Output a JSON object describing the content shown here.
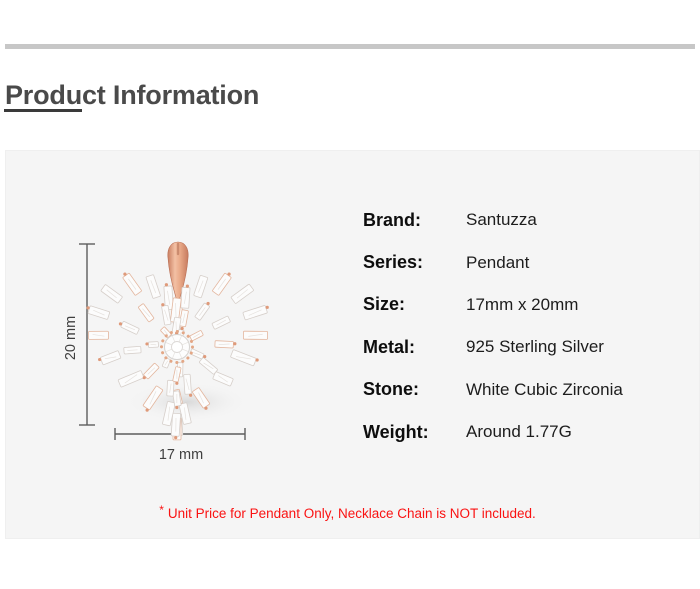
{
  "page": {
    "title": "Product Information"
  },
  "panel": {
    "diagram": {
      "height_label": "20 mm",
      "width_label": "17 mm"
    },
    "specs": [
      {
        "label": "Brand:",
        "value": "Santuzza"
      },
      {
        "label": "Series:",
        "value": "Pendant"
      },
      {
        "label": "Size:",
        "value": "17mm x 20mm"
      },
      {
        "label": "Metal:",
        "value": "925 Sterling Silver"
      },
      {
        "label": "Stone:",
        "value": "White Cubic Zirconia"
      },
      {
        "label": "Weight:",
        "value": "Around 1.77G"
      }
    ],
    "footnote": {
      "marker": "*",
      "text": "Unit Price for Pendant Only, Necklace Chain is NOT included."
    }
  },
  "colors": {
    "accent_red": "#fa1212",
    "rose_gold": "#dd9478",
    "stone_white": "#fcfcfc",
    "panel_bg": "#f5f5f5",
    "divider_gray": "#c7c7c7",
    "title_gray": "#4a4a4a"
  }
}
